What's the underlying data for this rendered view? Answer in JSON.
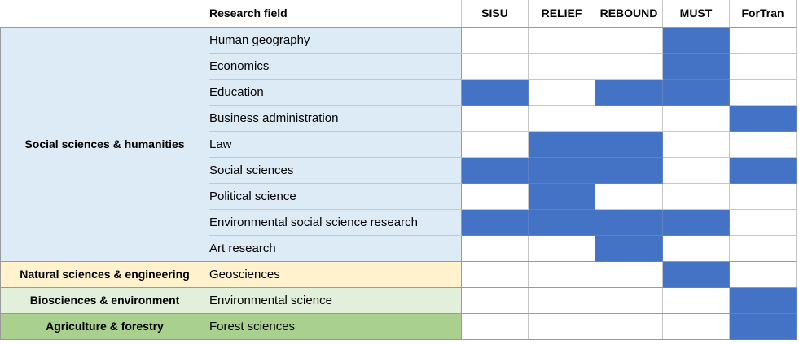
{
  "header": {
    "field_label": "Research field",
    "projects": [
      "SISU",
      "RELIEF",
      "REBOUND",
      "MUST",
      "ForTran"
    ]
  },
  "colors": {
    "filled": "#4472c4",
    "group_social": "#ddebf7",
    "group_natural": "#fff2cc",
    "group_bio": "#e2efda",
    "group_agri": "#a9d08e"
  },
  "groups": [
    {
      "label": "Social sciences & humanities",
      "color": "#ddebf7",
      "rows": [
        {
          "field": "Human geography",
          "marks": [
            0,
            0,
            0,
            1,
            0
          ]
        },
        {
          "field": "Economics",
          "marks": [
            0,
            0,
            0,
            1,
            0
          ]
        },
        {
          "field": "Education",
          "marks": [
            1,
            0,
            1,
            1,
            0
          ]
        },
        {
          "field": "Business administration",
          "marks": [
            0,
            0,
            0,
            0,
            1
          ]
        },
        {
          "field": "Law",
          "marks": [
            0,
            1,
            1,
            0,
            0
          ]
        },
        {
          "field": "Social sciences",
          "marks": [
            1,
            1,
            1,
            0,
            1
          ]
        },
        {
          "field": "Political science",
          "marks": [
            0,
            1,
            0,
            0,
            0
          ]
        },
        {
          "field": "Environmental social science research",
          "marks": [
            1,
            1,
            1,
            1,
            0
          ]
        },
        {
          "field": "Art research",
          "marks": [
            0,
            0,
            1,
            0,
            0
          ]
        }
      ]
    },
    {
      "label": "Natural sciences & engineering",
      "color": "#fff2cc",
      "rows": [
        {
          "field": "Geosciences",
          "marks": [
            0,
            0,
            0,
            1,
            0
          ]
        }
      ]
    },
    {
      "label": "Biosciences & environment",
      "color": "#e2efda",
      "rows": [
        {
          "field": "Environmental science",
          "marks": [
            0,
            0,
            0,
            0,
            1
          ]
        }
      ]
    },
    {
      "label": "Agriculture & forestry",
      "color": "#a9d08e",
      "rows": [
        {
          "field": "Forest sciences",
          "marks": [
            0,
            0,
            0,
            0,
            1
          ]
        }
      ]
    }
  ]
}
